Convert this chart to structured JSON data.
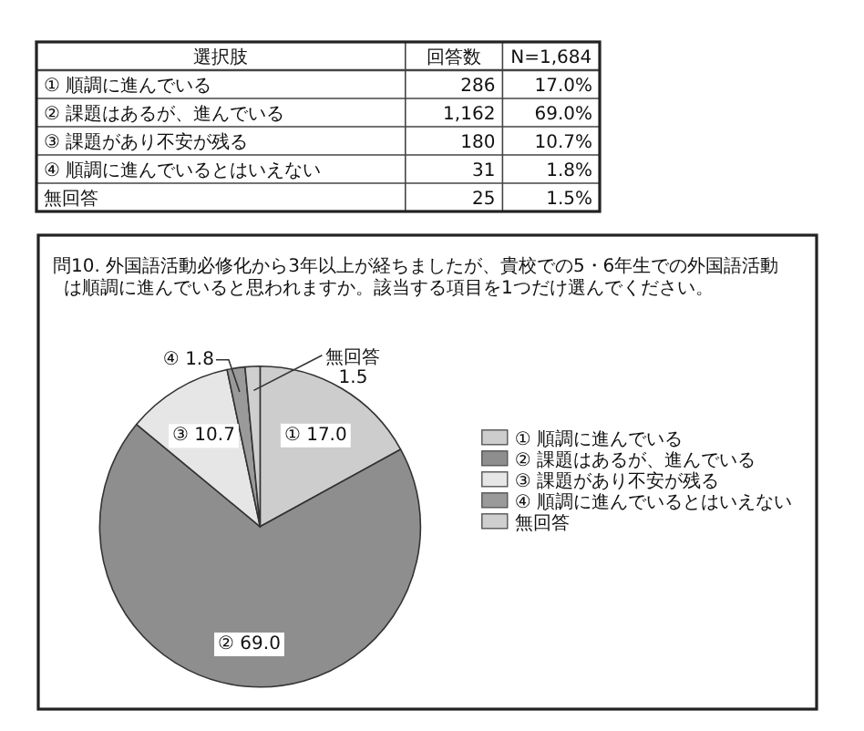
{
  "chart_data": [
    {
      "type": "other",
      "ylabel": "選択肢",
      "categories": [
        "① 順調に進んでいる",
        "② 課題はあるが、進んでいる",
        "③ 課題があり不安が残る",
        "④ 順調に進んでいるとはいえない",
        "無回答"
      ],
      "series": [
        {
          "name": "回答数",
          "values": [
            286,
            1162,
            180,
            31,
            25
          ],
          "value_labels": [
            "286",
            "1,162",
            "180",
            "31",
            "25"
          ]
        },
        {
          "name": "N=1,684",
          "values": [
            17.0,
            69.0,
            10.7,
            1.8,
            1.5
          ],
          "value_labels": [
            "17.0%",
            "69.0%",
            "10.7%",
            "1.8%",
            "1.5%"
          ]
        }
      ]
    },
    {
      "type": "pie",
      "title": "問10. 外国語活動必修化から3年以上が経ちましたが、貴校での5・6年生での外国語活動は順調に進んでいると思われますか。該当する項目を1つだけ選んでください。",
      "categories": [
        "① 順調に進んでいる",
        "② 課題はあるが、進んでいる",
        "③ 課題があり不安が残る",
        "④ 順調に進んでいるとはいえない",
        "無回答"
      ],
      "values": [
        17.0,
        69.0,
        10.7,
        1.8,
        1.5
      ],
      "colors": [
        "#cdcdcd",
        "#8e8e8e",
        "#e6e6e6",
        "#9a9a9a",
        "#cfcfcf"
      ],
      "value_labels": [
        "① 17.0",
        "② 69.0",
        "③ 10.7",
        "④ 1.8",
        "無回答\n1.5"
      ],
      "legend": "right"
    }
  ]
}
